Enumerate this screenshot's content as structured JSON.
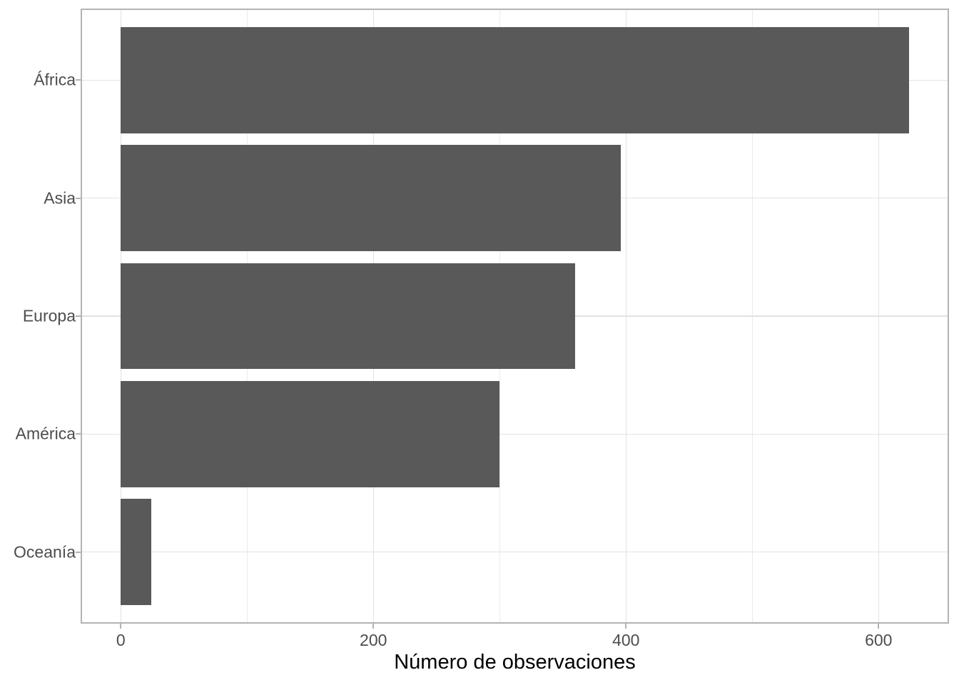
{
  "chart_data": {
    "type": "bar",
    "orientation": "horizontal",
    "title": "",
    "xlabel": "Número de observaciones",
    "ylabel": "",
    "categories": [
      "África",
      "Asia",
      "Europa",
      "América",
      "Oceanía"
    ],
    "values": [
      624,
      396,
      360,
      300,
      24
    ],
    "xlim": [
      -31.2,
      655.2
    ],
    "x_ticks": {
      "values": [
        0,
        200,
        400,
        600
      ],
      "labels": [
        "0",
        "200",
        "400",
        "600"
      ]
    },
    "x_minor_ticks": [
      100,
      300,
      500
    ],
    "grid": "major+minor",
    "legend": "none",
    "bar_width_fraction": 0.9,
    "y_expand": 0.6,
    "colors": {
      "bar_fill": "#595959",
      "panel_border": "#b3b3b3",
      "grid_major": "#e2e2e2",
      "grid_minor": "#ebebeb",
      "tick_mark": "#b3b3b3",
      "axis_text": "#4d4d4d",
      "axis_title": "#000000",
      "background": "#ffffff"
    }
  }
}
